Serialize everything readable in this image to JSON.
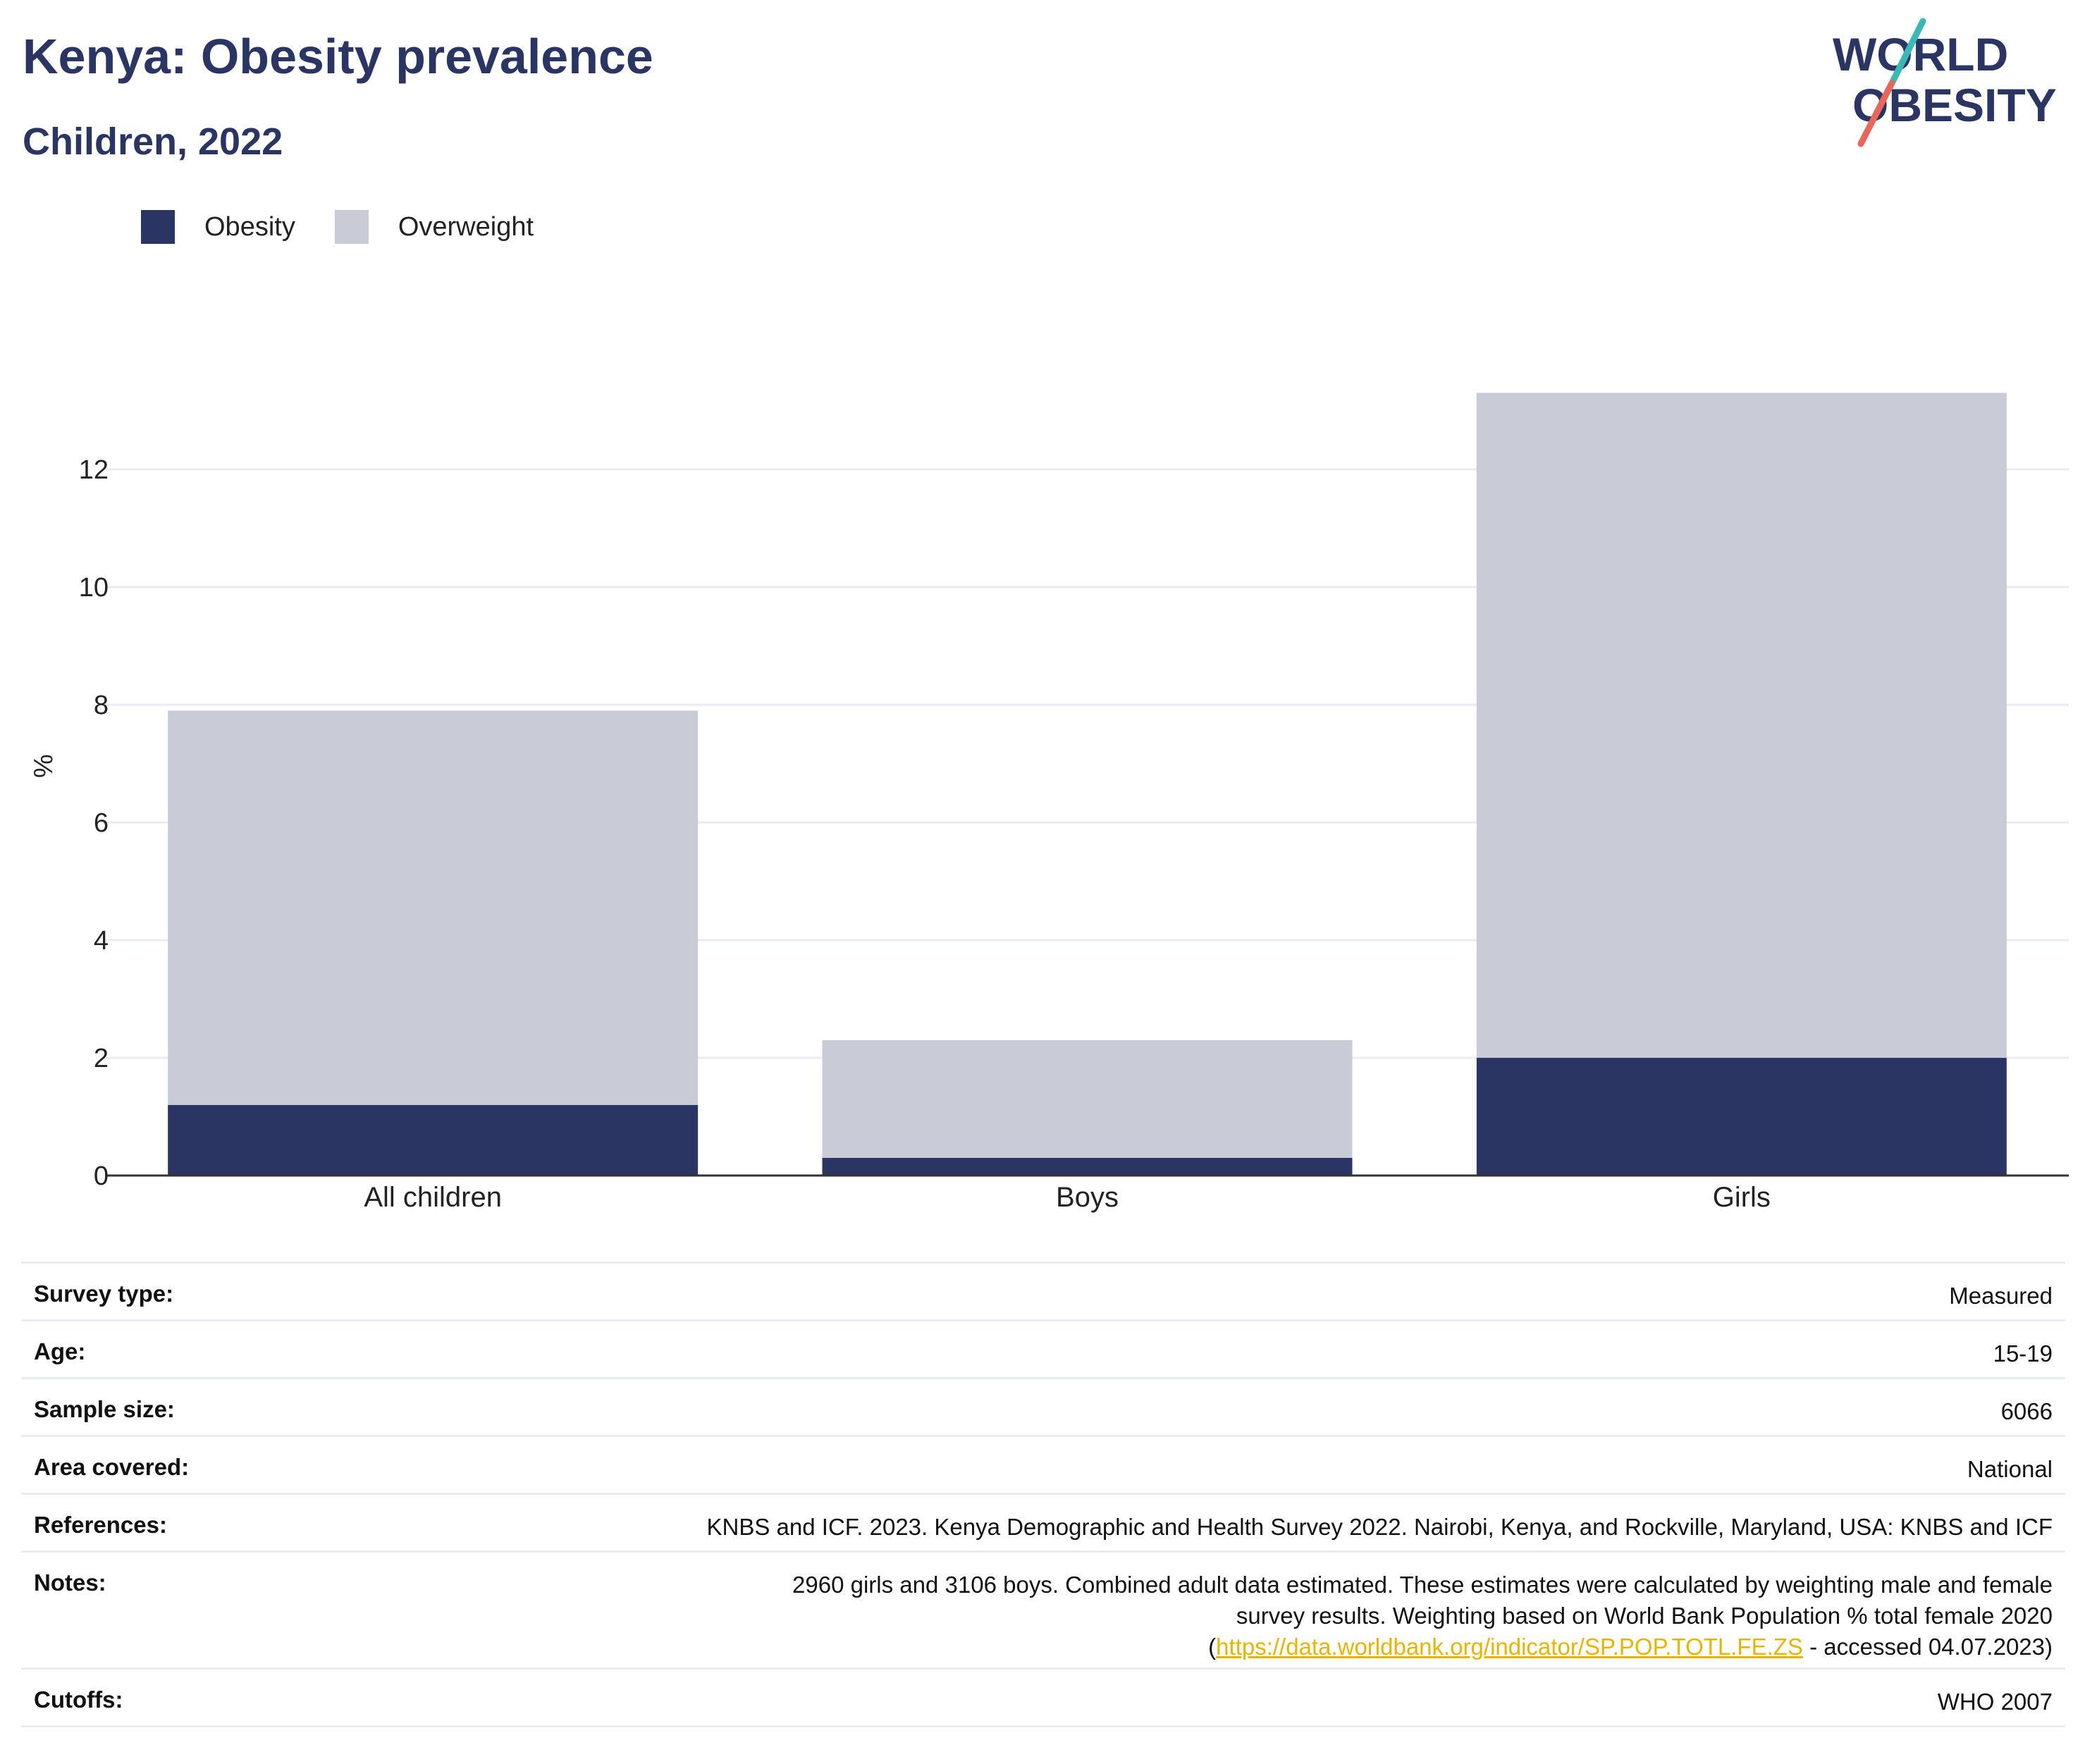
{
  "header": {
    "title": "Kenya: Obesity prevalence",
    "subtitle": "Children, 2022"
  },
  "logo": {
    "line1": "WORLD",
    "line2": "OBESITY",
    "colors": {
      "text": "#2a3563",
      "slash_teal": "#3bb9b7",
      "slash_coral": "#e8675a"
    }
  },
  "legend": [
    {
      "label": "Obesity",
      "color": "#2a3563"
    },
    {
      "label": "Overweight",
      "color": "#c9cbd6"
    }
  ],
  "chart_data": {
    "type": "bar",
    "stacked": true,
    "title": "Kenya: Obesity prevalence",
    "subtitle": "Children, 2022",
    "xlabel": "",
    "ylabel": "%",
    "categories": [
      "All children",
      "Boys",
      "Girls"
    ],
    "series": [
      {
        "name": "Obesity",
        "color": "#2a3563",
        "values": [
          1.2,
          0.3,
          2.0
        ]
      },
      {
        "name": "Overweight",
        "color": "#c9cbd6",
        "values": [
          6.7,
          2.0,
          11.3
        ]
      }
    ],
    "ylim": [
      0,
      14.5
    ],
    "yticks": [
      0,
      2,
      4,
      6,
      8,
      10,
      12
    ],
    "grid": true,
    "legend_position": "top-left"
  },
  "info": {
    "survey_type": {
      "label": "Survey type:",
      "value": "Measured"
    },
    "age": {
      "label": "Age:",
      "value": "15-19"
    },
    "sample_size": {
      "label": "Sample size:",
      "value": "6066"
    },
    "area_covered": {
      "label": "Area covered:",
      "value": "National"
    },
    "references": {
      "label": "References:",
      "value": "KNBS and ICF. 2023. Kenya Demographic and Health Survey 2022. Nairobi, Kenya, and Rockville, Maryland, USA: KNBS and ICF"
    },
    "notes": {
      "label": "Notes:",
      "text_before": "2960 girls and 3106 boys. Combined adult data estimated. These estimates were calculated by weighting male and female survey results. Weighting based on World Bank Population % total female 2020 (",
      "link": "https://data.worldbank.org/indicator/SP.POP.TOTL.FE.ZS",
      "text_after": " - accessed 04.07.2023)"
    },
    "cutoffs": {
      "label": "Cutoffs:",
      "value": "WHO 2007"
    }
  }
}
